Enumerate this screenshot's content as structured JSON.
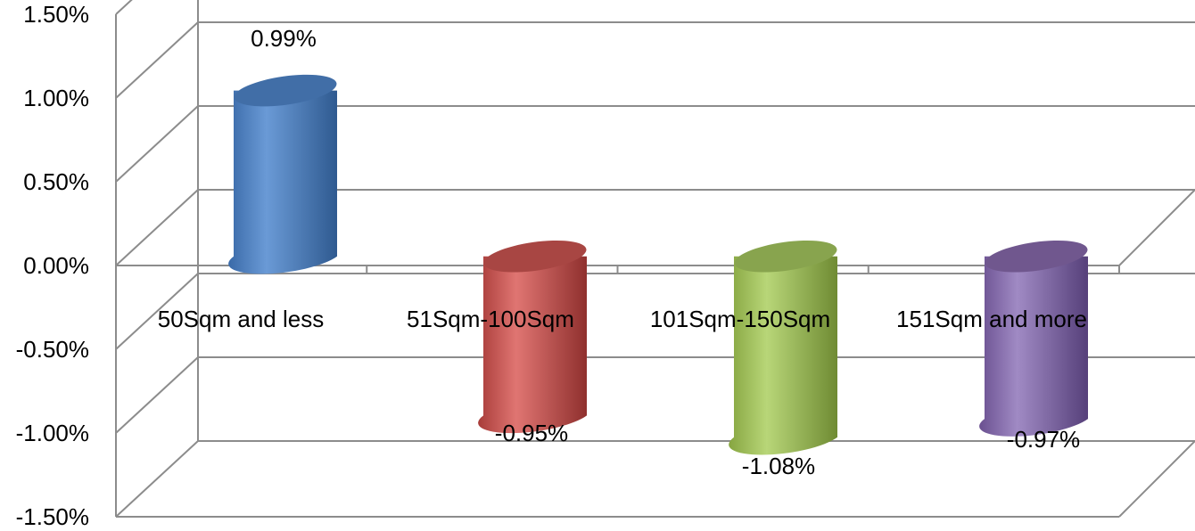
{
  "chart_data": {
    "type": "bar",
    "style": "3d-cylinder",
    "categories": [
      "50Sqm and less",
      "51Sqm-100Sqm",
      "101Sqm-150Sqm",
      "151Sqm and more"
    ],
    "values": [
      0.99,
      -0.95,
      -1.08,
      -0.97
    ],
    "data_labels": [
      "0.99%",
      "-0.95%",
      "-1.08%",
      "-0.97%"
    ],
    "colors": [
      "#4a7ebf",
      "#c0504d",
      "#9bbb59",
      "#8064a2"
    ],
    "y_ticks": [
      "1.50%",
      "1.00%",
      "0.50%",
      "0.00%",
      "-0.50%",
      "-1.00%",
      "-1.50%"
    ],
    "ylim": [
      -1.5,
      1.5
    ],
    "grid": true,
    "legend": "none"
  }
}
